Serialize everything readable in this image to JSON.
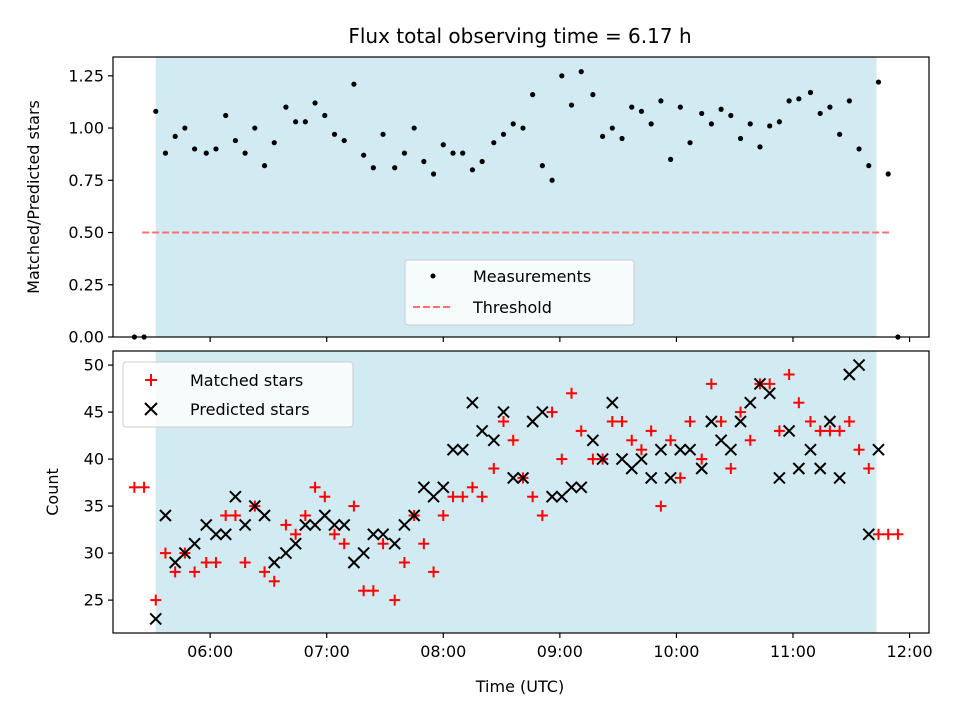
{
  "chart_data": [
    {
      "type": "scatter",
      "title": "Flux total observing time = 6.17 h",
      "xlabel": "",
      "ylabel": "Matched/Predicted stars",
      "xlim": [
        "05:10",
        "12:10"
      ],
      "ylim": [
        0,
        1.34
      ],
      "xticks": [
        "06:00",
        "07:00",
        "08:00",
        "09:00",
        "10:00",
        "11:00",
        "12:00"
      ],
      "yticks": [
        "0.00",
        "0.25",
        "0.50",
        "0.75",
        "1.00",
        "1.25"
      ],
      "shaded_span": [
        "05:32",
        "11:43"
      ],
      "shaded_color": "#add8e6",
      "legend_position": "lower center",
      "series": [
        {
          "name": "Measurements",
          "marker": "dot",
          "color": "#000000",
          "x": [
            "05:21",
            "05:26",
            "05:32",
            "05:37",
            "05:42",
            "05:47",
            "05:52",
            "05:58",
            "06:03",
            "06:08",
            "06:13",
            "06:18",
            "06:23",
            "06:28",
            "06:33",
            "06:39",
            "06:44",
            "06:49",
            "06:54",
            "06:59",
            "07:04",
            "07:09",
            "07:14",
            "07:19",
            "07:24",
            "07:29",
            "07:35",
            "07:40",
            "07:45",
            "07:50",
            "07:55",
            "08:00",
            "08:05",
            "08:10",
            "08:15",
            "08:20",
            "08:26",
            "08:31",
            "08:36",
            "08:41",
            "08:46",
            "08:51",
            "08:56",
            "09:01",
            "09:06",
            "09:11",
            "09:17",
            "09:22",
            "09:27",
            "09:32",
            "09:37",
            "09:42",
            "09:47",
            "09:52",
            "09:57",
            "10:02",
            "10:07",
            "10:13",
            "10:18",
            "10:23",
            "10:28",
            "10:33",
            "10:38",
            "10:43",
            "10:48",
            "10:53",
            "10:58",
            "11:03",
            "11:09",
            "11:14",
            "11:19",
            "11:24",
            "11:29",
            "11:34",
            "11:39",
            "11:44",
            "11:49",
            "11:54"
          ],
          "values": [
            0.0,
            0.0,
            1.08,
            0.88,
            0.96,
            1.0,
            0.9,
            0.88,
            0.9,
            1.06,
            0.94,
            0.88,
            1.0,
            0.82,
            0.93,
            1.1,
            1.03,
            1.03,
            1.12,
            1.06,
            0.97,
            0.94,
            1.21,
            0.87,
            0.81,
            0.97,
            0.81,
            0.88,
            1.0,
            0.84,
            0.78,
            0.92,
            0.88,
            0.88,
            0.8,
            0.84,
            0.93,
            0.97,
            1.02,
            1.0,
            1.16,
            0.82,
            0.75,
            1.25,
            1.11,
            1.27,
            1.16,
            0.96,
            1.0,
            0.95,
            1.1,
            1.08,
            1.02,
            1.13,
            0.85,
            1.1,
            0.93,
            1.07,
            1.02,
            1.09,
            1.06,
            0.95,
            1.02,
            0.91,
            1.01,
            1.03,
            1.13,
            1.14,
            1.17,
            1.07,
            1.1,
            0.97,
            1.13,
            0.9,
            0.82,
            1.22,
            0.78,
            0.0
          ]
        },
        {
          "name": "Threshold",
          "style": "dashed",
          "color": "#ff7070",
          "x": [
            "05:25",
            "11:51"
          ],
          "values": [
            0.5,
            0.5
          ]
        }
      ]
    },
    {
      "type": "scatter",
      "title": "",
      "xlabel": "Time (UTC)",
      "ylabel": "Count",
      "xlim": [
        "05:10",
        "12:10"
      ],
      "ylim": [
        21.5,
        51.5
      ],
      "xticks": [
        "06:00",
        "07:00",
        "08:00",
        "09:00",
        "10:00",
        "11:00",
        "12:00"
      ],
      "yticks": [
        "25",
        "30",
        "35",
        "40",
        "45",
        "50"
      ],
      "shaded_span": [
        "05:32",
        "11:43"
      ],
      "shaded_color": "#add8e6",
      "legend_position": "upper left",
      "series": [
        {
          "name": "Matched stars",
          "marker": "plus",
          "color": "#ff0000",
          "x": [
            "05:21",
            "05:26",
            "05:32",
            "05:37",
            "05:42",
            "05:47",
            "05:52",
            "05:58",
            "06:03",
            "06:08",
            "06:13",
            "06:18",
            "06:23",
            "06:28",
            "06:33",
            "06:39",
            "06:44",
            "06:49",
            "06:54",
            "06:59",
            "07:04",
            "07:09",
            "07:14",
            "07:19",
            "07:24",
            "07:29",
            "07:35",
            "07:40",
            "07:45",
            "07:50",
            "07:55",
            "08:00",
            "08:05",
            "08:10",
            "08:15",
            "08:20",
            "08:26",
            "08:31",
            "08:36",
            "08:41",
            "08:46",
            "08:51",
            "08:56",
            "09:01",
            "09:06",
            "09:11",
            "09:17",
            "09:22",
            "09:27",
            "09:32",
            "09:37",
            "09:42",
            "09:47",
            "09:52",
            "09:57",
            "10:02",
            "10:07",
            "10:13",
            "10:18",
            "10:23",
            "10:28",
            "10:33",
            "10:38",
            "10:43",
            "10:48",
            "10:53",
            "10:58",
            "11:03",
            "11:09",
            "11:14",
            "11:19",
            "11:24",
            "11:29",
            "11:34",
            "11:39",
            "11:44",
            "11:49",
            "11:54"
          ],
          "values": [
            37,
            37,
            25,
            30,
            28,
            30,
            28,
            29,
            29,
            34,
            34,
            29,
            35,
            28,
            27,
            33,
            32,
            34,
            37,
            36,
            32,
            31,
            35,
            26,
            26,
            31,
            25,
            29,
            34,
            31,
            28,
            34,
            36,
            36,
            37,
            36,
            39,
            44,
            42,
            38,
            36,
            34,
            45,
            40,
            47,
            43,
            40,
            40,
            44,
            44,
            42,
            41,
            43,
            35,
            42,
            38,
            44,
            40,
            48,
            44,
            39,
            45,
            42,
            48,
            48,
            43,
            49,
            46,
            44,
            43,
            43,
            43,
            44,
            41,
            39,
            32,
            32,
            32
          ]
        },
        {
          "name": "Predicted stars",
          "marker": "x",
          "color": "#000000",
          "x": [
            "05:32",
            "05:37",
            "05:42",
            "05:47",
            "05:52",
            "05:58",
            "06:03",
            "06:08",
            "06:13",
            "06:18",
            "06:23",
            "06:28",
            "06:33",
            "06:39",
            "06:44",
            "06:49",
            "06:54",
            "06:59",
            "07:04",
            "07:09",
            "07:14",
            "07:19",
            "07:24",
            "07:29",
            "07:35",
            "07:40",
            "07:45",
            "07:50",
            "07:55",
            "08:00",
            "08:05",
            "08:10",
            "08:15",
            "08:20",
            "08:26",
            "08:31",
            "08:36",
            "08:41",
            "08:46",
            "08:51",
            "08:56",
            "09:01",
            "09:06",
            "09:11",
            "09:17",
            "09:22",
            "09:27",
            "09:32",
            "09:37",
            "09:42",
            "09:47",
            "09:52",
            "09:57",
            "10:02",
            "10:07",
            "10:13",
            "10:18",
            "10:23",
            "10:28",
            "10:33",
            "10:38",
            "10:43",
            "10:48",
            "10:53",
            "10:58",
            "11:03",
            "11:09",
            "11:14",
            "11:19",
            "11:24",
            "11:29",
            "11:34",
            "11:39",
            "11:44"
          ],
          "values": [
            23,
            34,
            29,
            30,
            31,
            33,
            32,
            32,
            36,
            33,
            35,
            34,
            29,
            30,
            31,
            33,
            33,
            34,
            33,
            33,
            29,
            30,
            32,
            32,
            31,
            33,
            34,
            37,
            36,
            37,
            41,
            41,
            46,
            43,
            42,
            45,
            38,
            38,
            44,
            45,
            36,
            36,
            37,
            37,
            42,
            40,
            46,
            40,
            39,
            40,
            38,
            41,
            38,
            41,
            41,
            39,
            44,
            42,
            41,
            44,
            46,
            48,
            47,
            38,
            43,
            39,
            41,
            39,
            44,
            38,
            49,
            50,
            32,
            41
          ]
        }
      ]
    }
  ]
}
